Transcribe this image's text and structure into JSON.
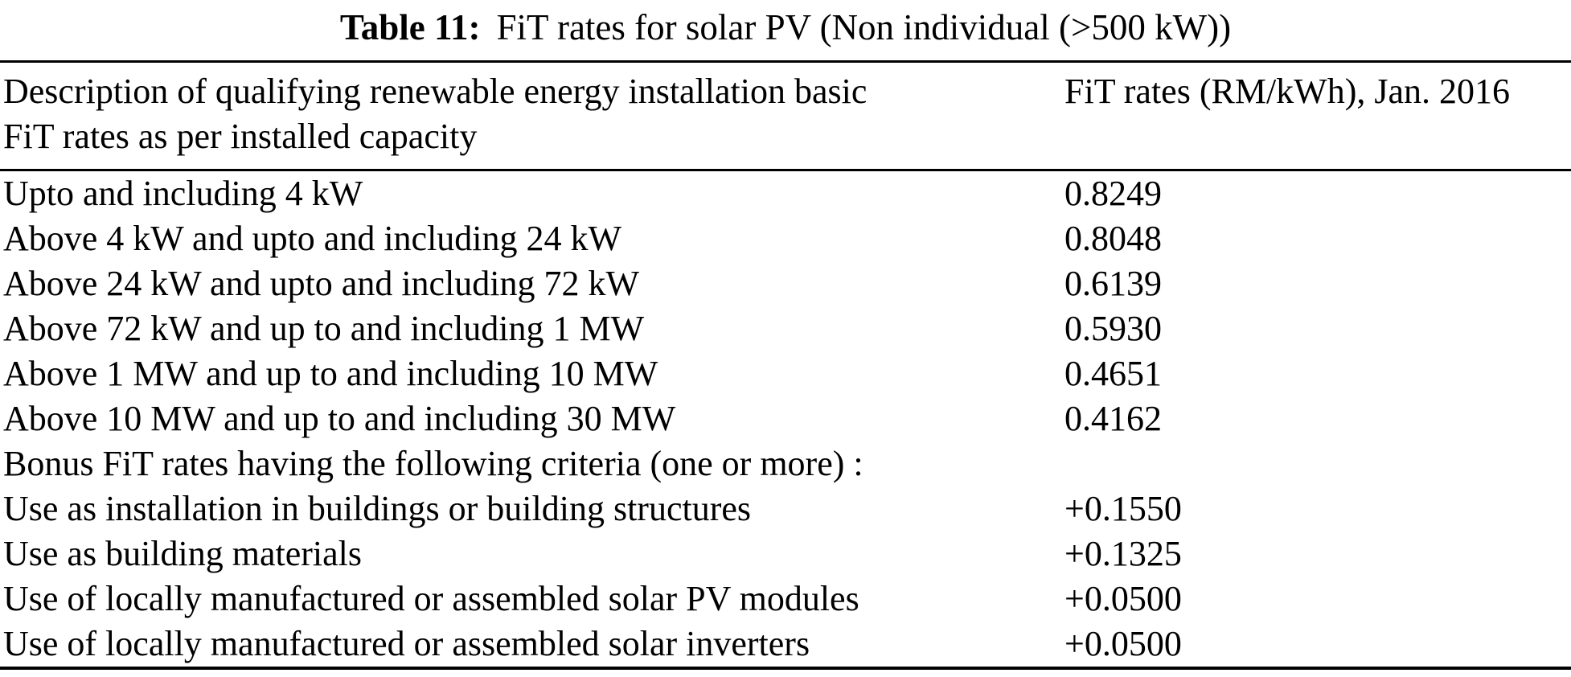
{
  "caption": {
    "label": "Table 11:",
    "text": "FiT rates for solar PV (Non individual (>500 kW))"
  },
  "table": {
    "header": {
      "col1_line1": "Description of qualifying renewable energy installation basic",
      "col1_line2": "FiT rates as per installed capacity",
      "col2": "FiT rates (RM/kWh), Jan. 2016"
    },
    "rows": [
      {
        "desc": "Upto and including 4 kW",
        "rate": "0.8249"
      },
      {
        "desc": "Above 4 kW and upto and including 24 kW",
        "rate": "0.8048"
      },
      {
        "desc": "Above 24 kW and upto and including 72 kW",
        "rate": "0.6139"
      },
      {
        "desc": "Above 72 kW and up to and including 1 MW",
        "rate": "0.5930"
      },
      {
        "desc": "Above 1 MW and up to and including 10 MW",
        "rate": "0.4651"
      },
      {
        "desc": "Above 10 MW and up to and including 30 MW",
        "rate": "0.4162"
      },
      {
        "desc": "Bonus FiT rates having the following criteria (one or more) :",
        "rate": ""
      },
      {
        "desc": "Use as installation in buildings or building structures",
        "rate": "+0.1550"
      },
      {
        "desc": "Use as building materials",
        "rate": "+0.1325"
      },
      {
        "desc": "Use of locally manufactured or assembled solar PV modules",
        "rate": "+0.0500"
      },
      {
        "desc": "Use of locally manufactured or assembled solar inverters",
        "rate": "+0.0500"
      }
    ]
  },
  "colors": {
    "text": "#000000",
    "background": "#ffffff",
    "rule": "#000000"
  }
}
